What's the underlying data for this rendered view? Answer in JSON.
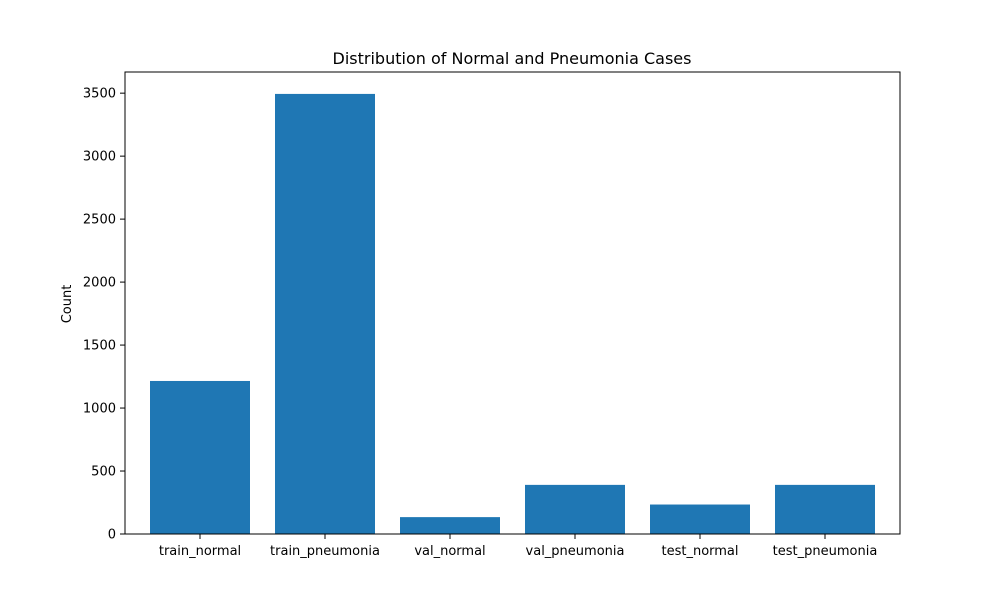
{
  "chart_data": {
    "type": "bar",
    "title": "Distribution of Normal and Pneumonia Cases",
    "xlabel": "",
    "ylabel": "Count",
    "categories": [
      "train_normal",
      "train_pneumonia",
      "val_normal",
      "val_pneumonia",
      "test_normal",
      "test_pneumonia"
    ],
    "values": [
      1215,
      3494,
      134,
      390,
      234,
      390
    ],
    "ylim": [
      0,
      3668
    ],
    "yticks": [
      0,
      500,
      1000,
      1500,
      2000,
      2500,
      3000,
      3500
    ],
    "bar_color": "#1f77b4",
    "grid": false,
    "legend": "none"
  }
}
